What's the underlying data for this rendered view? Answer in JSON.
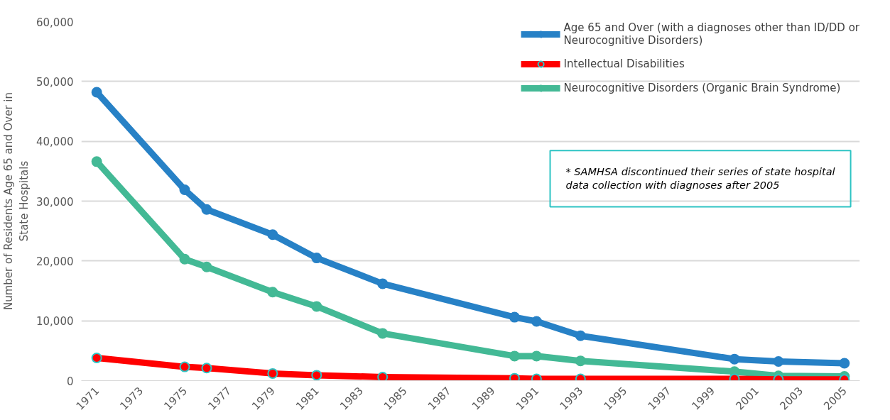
{
  "chart_data": {
    "type": "line",
    "ylabel": "Number of Residents Age 65 and Over in State Hospitals",
    "x": [
      1971,
      1975,
      1976,
      1979,
      1981,
      1984,
      1990,
      1991,
      1993,
      2000,
      2002,
      2005
    ],
    "series": [
      {
        "name": "Age 65 and Over (with a diagnoses other than ID/DD or Neurocognitive Disorders)",
        "color": "#2781c6",
        "values": [
          48200,
          31900,
          28600,
          24400,
          20500,
          16200,
          10600,
          9900,
          7500,
          3600,
          3200,
          2900
        ]
      },
      {
        "name": "Intellectual Disabilities",
        "color": "#ff0000",
        "values": [
          3800,
          2300,
          2100,
          1200,
          900,
          600,
          400,
          300,
          300,
          300,
          200,
          200
        ]
      },
      {
        "name": "Neurocognitive Disorders (Organic Brain Syndrome)",
        "color": "#43b995",
        "values": [
          36600,
          20300,
          19000,
          14800,
          12400,
          7900,
          4100,
          4100,
          3300,
          1500,
          800,
          700
        ]
      }
    ],
    "xlim": [
      1970.3,
      2005.7
    ],
    "xticks": [
      1971,
      1973,
      1975,
      1977,
      1979,
      1981,
      1983,
      1985,
      1987,
      1989,
      1991,
      1993,
      1995,
      1997,
      1999,
      2001,
      2003,
      2005
    ],
    "ylim": [
      0,
      60000
    ],
    "yticks": [
      {
        "value": 0,
        "label": "0"
      },
      {
        "value": 10000,
        "label": "10,000"
      },
      {
        "value": 20000,
        "label": "20,000"
      },
      {
        "value": 30000,
        "label": "30,000"
      },
      {
        "value": 40000,
        "label": "40,000"
      },
      {
        "value": 50000,
        "label": "50,000"
      },
      {
        "value": 60000,
        "label": "60,000"
      }
    ],
    "grid": "y",
    "legend": "top right",
    "marker": "circle",
    "line_style": "solid",
    "annotations": [
      "* SAMHSA discontinued their series of state hospital data collection with diagnoses after 2005"
    ]
  }
}
